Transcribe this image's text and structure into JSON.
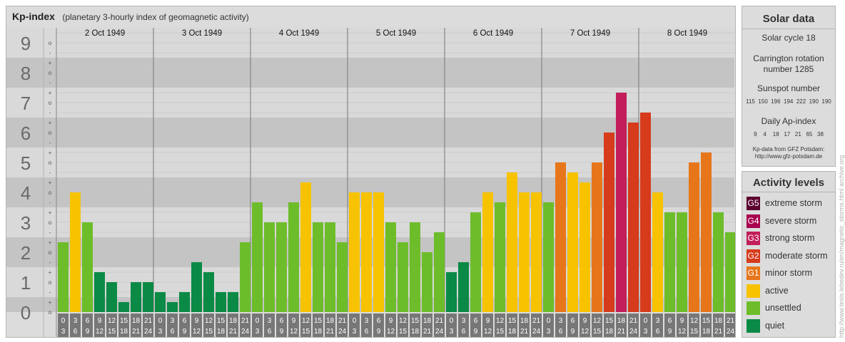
{
  "chart_data": {
    "type": "bar",
    "title": "Kp-index",
    "subtitle": "(planetary 3-hourly index of geomagnetic activity)",
    "ylim": [
      0,
      9
    ],
    "y_ticks": [
      "0",
      "1",
      "2",
      "3",
      "4",
      "5",
      "6",
      "7",
      "8",
      "9"
    ],
    "minor_ticks": [
      "o",
      "+",
      "-"
    ],
    "days": [
      "2 Oct 1949",
      "3 Oct 1949",
      "4 Oct 1949",
      "5 Oct 1949",
      "6 Oct 1949",
      "7 Oct 1949",
      "8 Oct 1949"
    ],
    "hour_ranges": [
      [
        "0",
        "3"
      ],
      [
        "3",
        "6"
      ],
      [
        "6",
        "9"
      ],
      [
        "9",
        "12"
      ],
      [
        "12",
        "15"
      ],
      [
        "15",
        "18"
      ],
      [
        "18",
        "21"
      ],
      [
        "21",
        "24"
      ]
    ],
    "values": [
      2.333,
      4.0,
      3.0,
      1.333,
      1.0,
      0.333,
      1.0,
      1.0,
      0.667,
      0.333,
      0.667,
      1.667,
      1.333,
      0.667,
      0.667,
      2.333,
      3.667,
      3.0,
      3.0,
      3.667,
      4.333,
      3.0,
      3.0,
      2.333,
      4.0,
      4.0,
      4.0,
      3.0,
      2.333,
      3.0,
      2.0,
      2.667,
      1.333,
      1.667,
      3.333,
      4.0,
      3.667,
      4.667,
      4.0,
      4.0,
      3.667,
      5.0,
      4.667,
      4.333,
      5.0,
      6.0,
      7.333,
      6.333,
      6.667,
      4.0,
      3.333,
      3.333,
      5.0,
      5.333,
      3.333,
      2.667
    ],
    "colors": {
      "quiet": "#0a8a45",
      "unsettled": "#6dbd2a",
      "active": "#f7c300",
      "G1": "#e7761a",
      "G2": "#d63b1c",
      "G3": "#c21f5a",
      "G4": "#a8004e",
      "G5": "#5c0030"
    }
  },
  "solar": {
    "title": "Solar data",
    "cycle": "Solar cycle 18",
    "carrington_line1": "Carrington rotation",
    "carrington_line2": "number 1285",
    "sunspot_title": "Sunspot number",
    "sunspot_values": "115  150  196  194  222  190  190",
    "ap_title": "Daily Ap-index",
    "ap_values": "9    4    18   17   21   65   38",
    "source_line1": "Kp-data from GFZ Potsdam:",
    "source_line2": "http://www.gfz-potsdam.de"
  },
  "activity": {
    "title": "Activity levels",
    "items": [
      {
        "code": "G5",
        "label": "extreme storm",
        "color": "#5c0030"
      },
      {
        "code": "G4",
        "label": "severe storm",
        "color": "#a8004e"
      },
      {
        "code": "G3",
        "label": "strong storm",
        "color": "#c21f5a"
      },
      {
        "code": "G2",
        "label": "moderate storm",
        "color": "#d63b1c"
      },
      {
        "code": "G1",
        "label": "minor storm",
        "color": "#e7761a"
      },
      {
        "code": "",
        "label": "active",
        "color": "#f7c300"
      },
      {
        "code": "",
        "label": "unsettled",
        "color": "#6dbd2a"
      },
      {
        "code": "",
        "label": "quiet",
        "color": "#0a8a45"
      }
    ]
  },
  "watermark": "http://www.tesis.lebedev.ru/en/magnetic_storms.html   archive.org"
}
